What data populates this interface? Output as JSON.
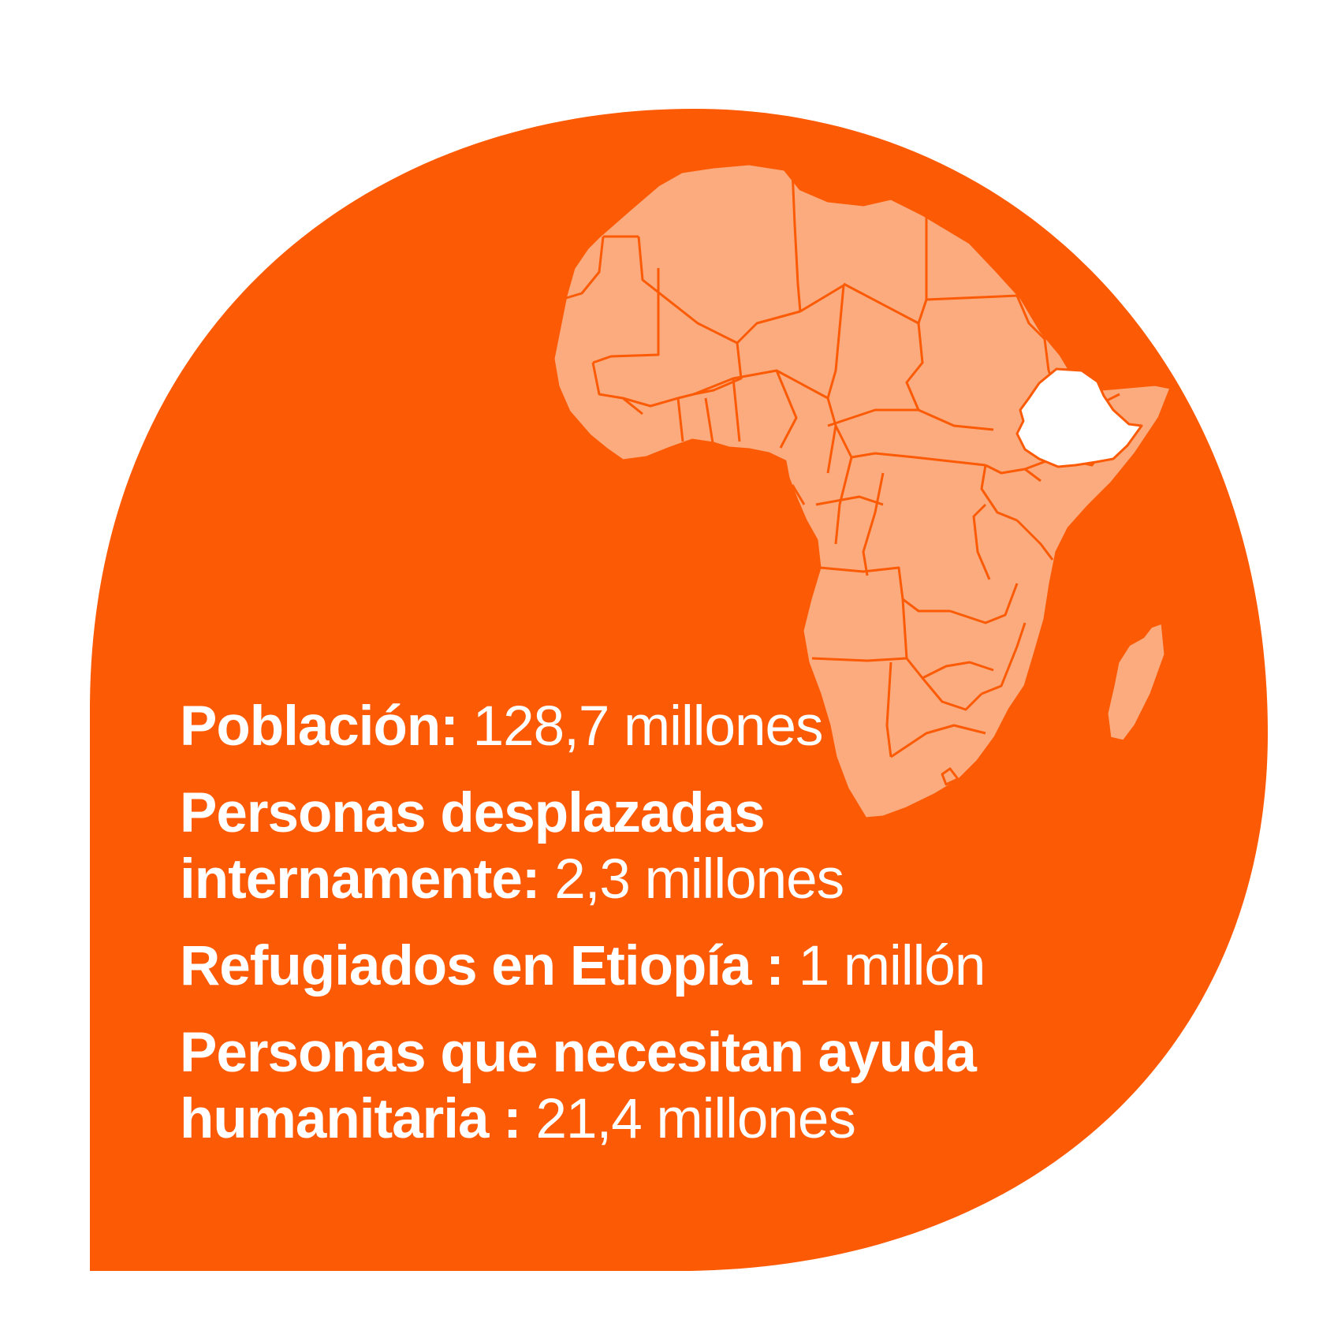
{
  "colors": {
    "background": "#ffffff",
    "shape": "#fc5a04",
    "land": "#fbab7e",
    "border": "#fc5a04",
    "highlight_country": "#ffffff",
    "text": "#ffffff"
  },
  "map": {
    "region": "Africa",
    "highlighted_country": "Ethiopia"
  },
  "stats": [
    {
      "label": "Población:",
      "value": "128,7 millones"
    },
    {
      "label": "Personas desplazadas internamente:",
      "value": "2,3 millones"
    },
    {
      "label": "Refugiados en Etiopía :",
      "value": "1 millón"
    },
    {
      "label": "Personas que necesitan ayuda humanitaria :",
      "value": "21,4 millones"
    }
  ]
}
